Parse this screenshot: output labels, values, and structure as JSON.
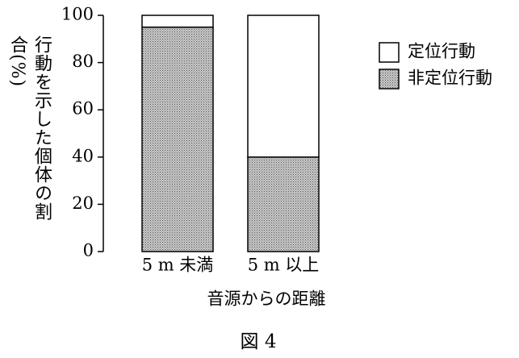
{
  "chart_data": {
    "type": "stacked_bar",
    "ylabel": "行動を示した個体の割合(%)",
    "xlabel": "音源からの距離",
    "caption": "図 4",
    "categories": [
      "5 m 未満",
      "5 m 以上"
    ],
    "series": [
      {
        "name": "定位行動",
        "color": "#ffffff",
        "values": [
          5,
          60
        ]
      },
      {
        "name": "非定位行動",
        "color": "#c9c9c9",
        "values": [
          95,
          40
        ]
      }
    ],
    "ylim": [
      0,
      100
    ],
    "yticks": [
      0,
      20,
      40,
      60,
      80,
      100
    ]
  }
}
